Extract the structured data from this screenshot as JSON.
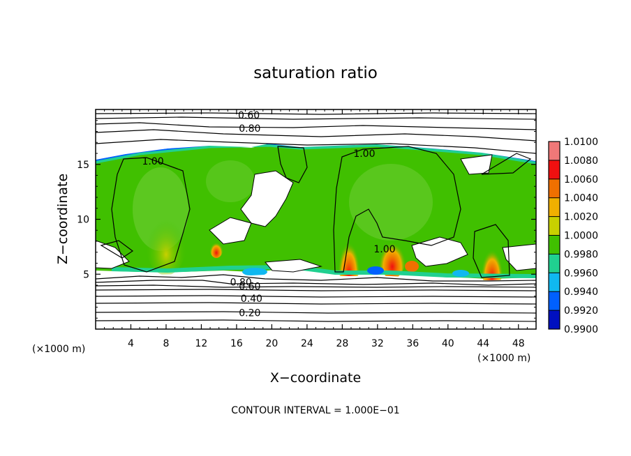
{
  "chart_data": {
    "type": "heatmap",
    "title": "saturation ratio",
    "xlabel": "X−coordinate",
    "ylabel": "Z−coordinate",
    "x_unit_left": "(×1000 m)",
    "x_unit_right": "(×1000 m)",
    "footer": "CONTOUR INTERVAL = 1.000E−01",
    "xlim": [
      0,
      50
    ],
    "ylim": [
      0,
      20
    ],
    "x_ticks": [
      {
        "value": 4,
        "label": "4"
      },
      {
        "value": 8,
        "label": "8"
      },
      {
        "value": 12,
        "label": "12"
      },
      {
        "value": 16,
        "label": "16"
      },
      {
        "value": 20,
        "label": "20"
      },
      {
        "value": 24,
        "label": "24"
      },
      {
        "value": 28,
        "label": "28"
      },
      {
        "value": 32,
        "label": "32"
      },
      {
        "value": 36,
        "label": "36"
      },
      {
        "value": 40,
        "label": "40"
      },
      {
        "value": 44,
        "label": "44"
      },
      {
        "value": 48,
        "label": "48"
      }
    ],
    "y_ticks": [
      {
        "value": 5,
        "label": "5"
      },
      {
        "value": 10,
        "label": "10"
      },
      {
        "value": 15,
        "label": "15"
      }
    ],
    "colorbar": {
      "levels": [
        "1.0100",
        "1.0080",
        "1.0060",
        "1.0040",
        "1.0020",
        "1.0000",
        "0.9980",
        "0.9960",
        "0.9940",
        "0.9920",
        "0.9900"
      ],
      "colors": [
        "#f07878",
        "#f01010",
        "#f07000",
        "#f0b000",
        "#c8d000",
        "#40c000",
        "#20d090",
        "#10b8f0",
        "#0060ff",
        "#0010c0",
        "#400080"
      ]
    },
    "contour_labels": [
      {
        "text": "0.60",
        "x": 17.4,
        "z": 19.5
      },
      {
        "text": "0.80",
        "x": 17.5,
        "z": 18.3
      },
      {
        "text": "1.00",
        "x": 6.5,
        "z": 15.3
      },
      {
        "text": "1.00",
        "x": 30.5,
        "z": 16.0
      },
      {
        "text": "1.00",
        "x": 32.8,
        "z": 7.3
      },
      {
        "text": "0.80",
        "x": 16.5,
        "z": 4.3
      },
      {
        "text": "0.60",
        "x": 17.5,
        "z": 3.9
      },
      {
        "text": "0.40",
        "x": 17.7,
        "z": 2.8
      },
      {
        "text": "0.20",
        "x": 17.5,
        "z": 1.5
      }
    ]
  }
}
